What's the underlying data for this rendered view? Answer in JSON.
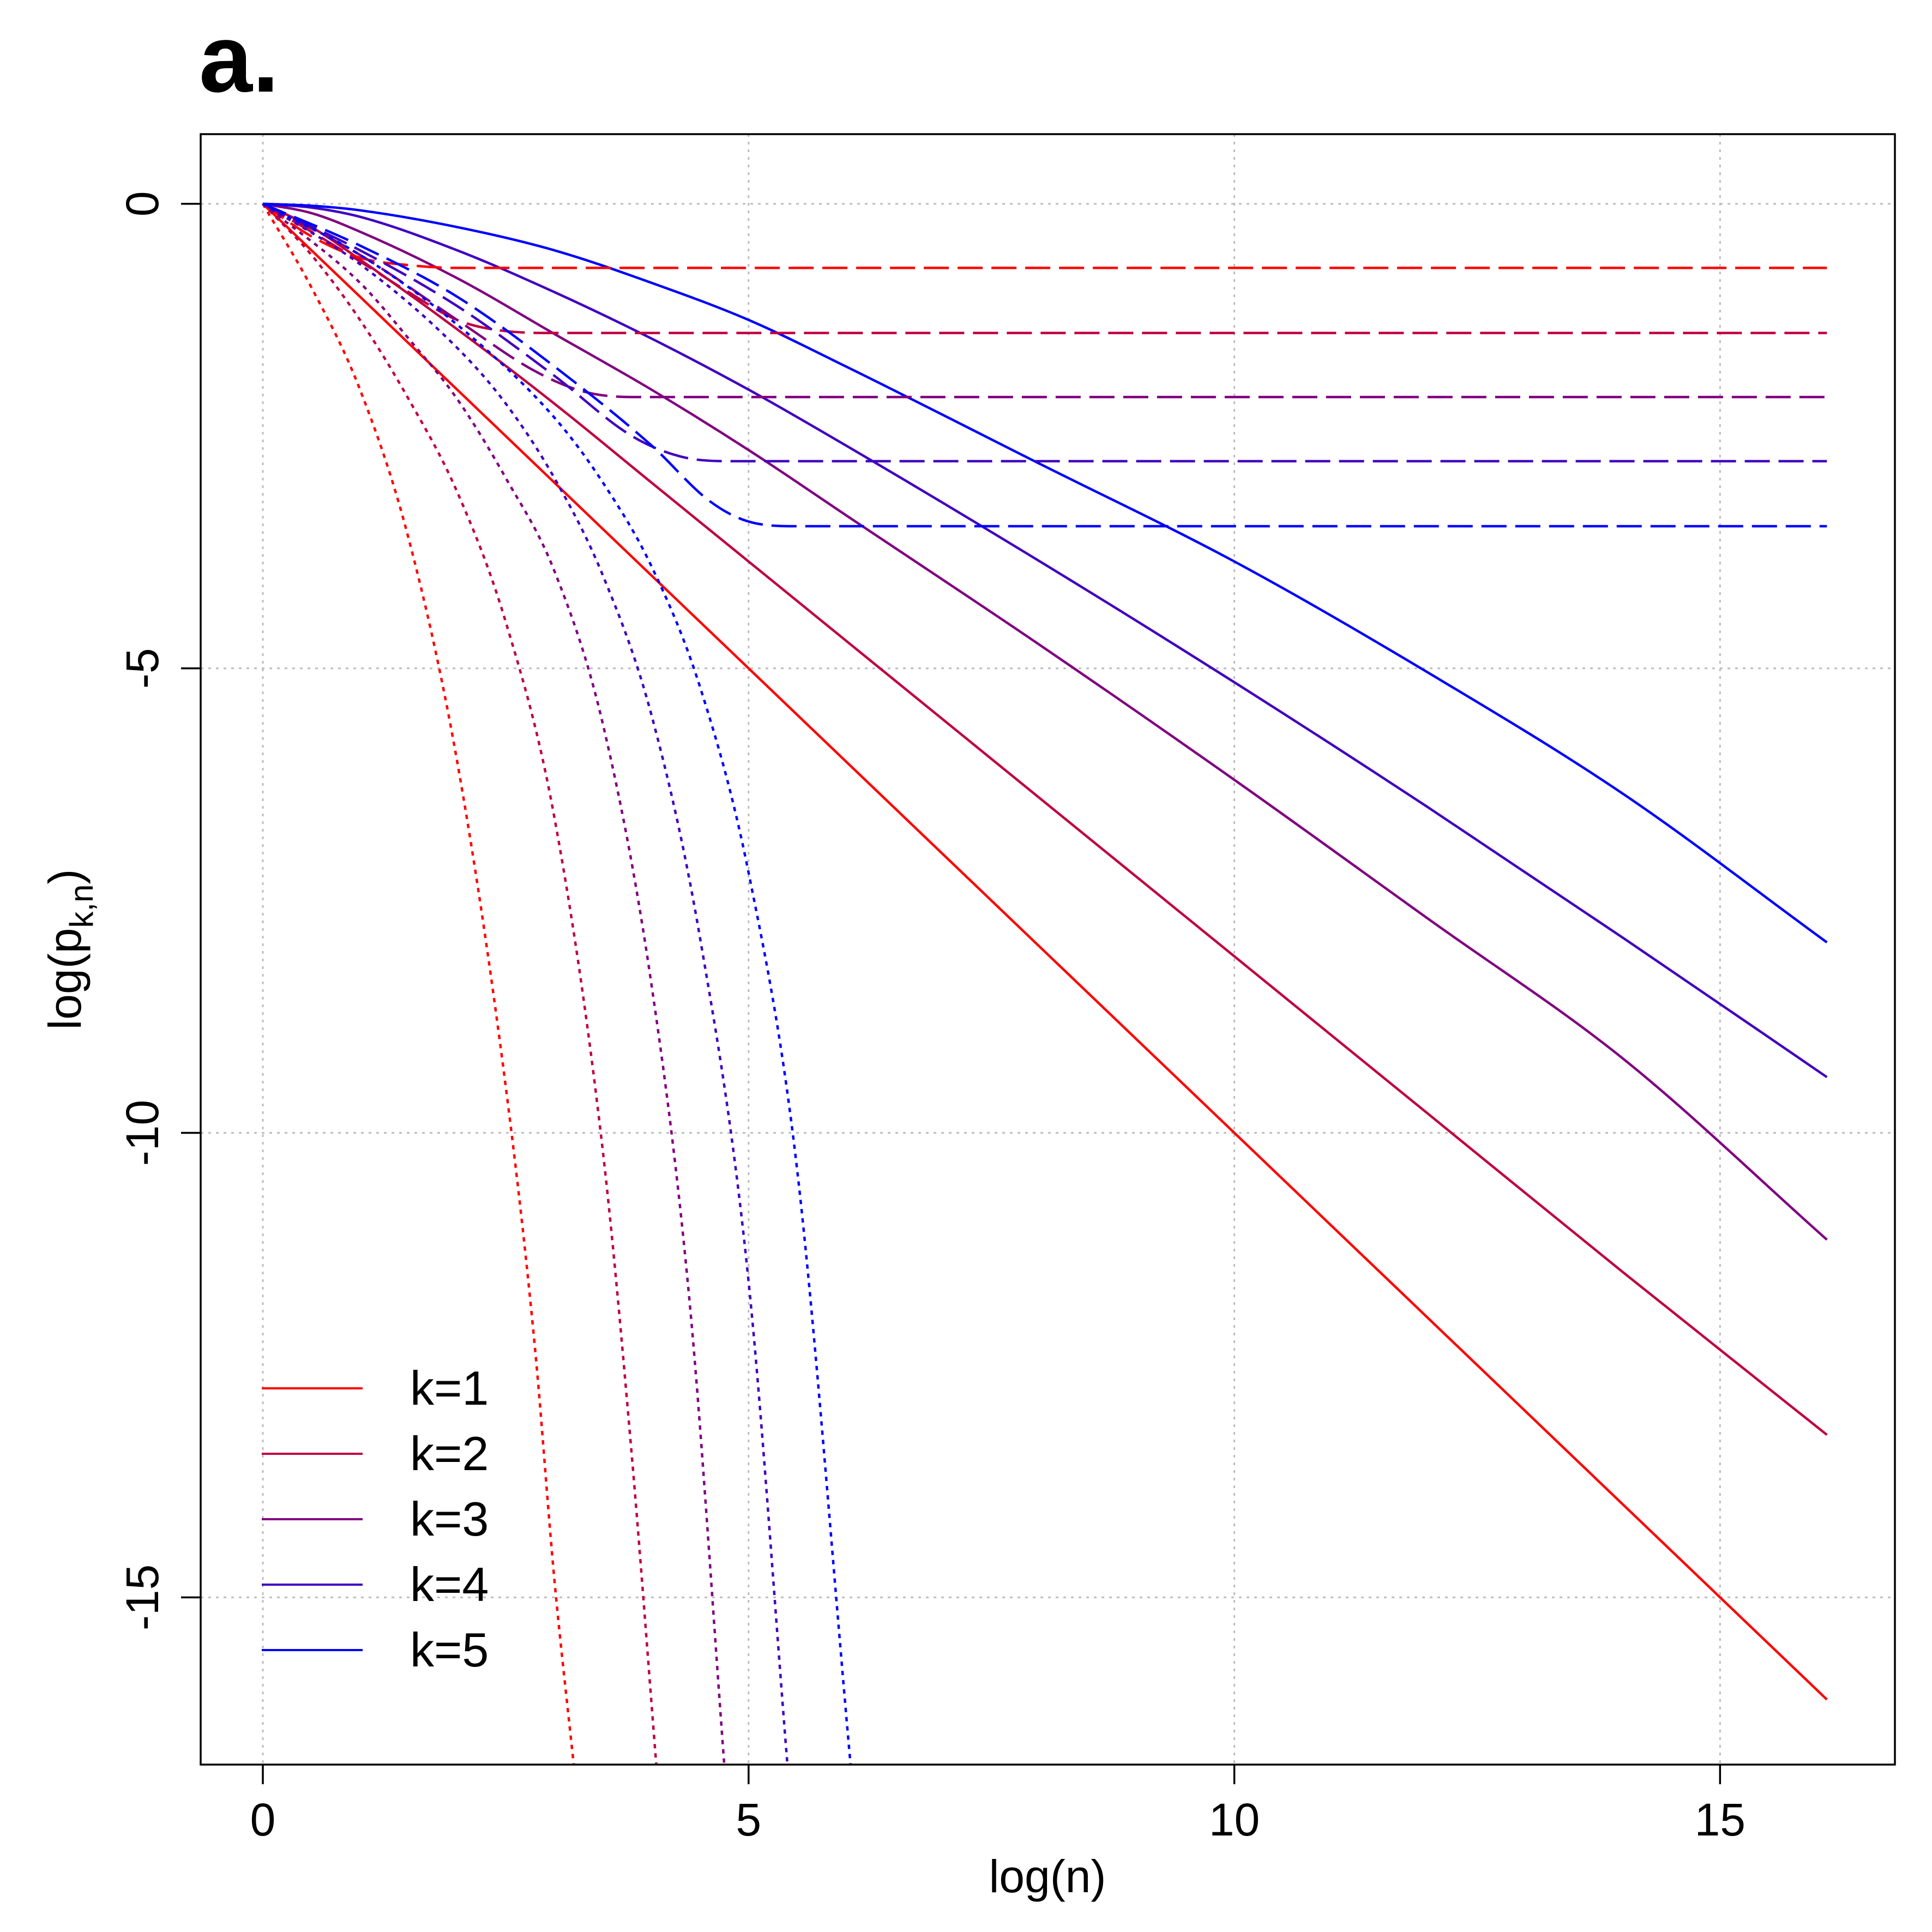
{
  "panel_label": "a.",
  "colors": {
    "k1": "#FF0000",
    "k2": "#BF0040",
    "k3": "#800080",
    "k4": "#4000BF",
    "k5": "#0000FF"
  },
  "chart_data": {
    "type": "line",
    "title": "",
    "xlabel": "log(n)",
    "ylabel_main": "log(p",
    "ylabel_sub": "k,n",
    "ylabel_close": ")",
    "xlim": [
      -0.64,
      16.8
    ],
    "ylim": [
      -16.8,
      0.75
    ],
    "xticks": [
      0,
      5,
      10,
      15
    ],
    "xtick_labels": [
      "0",
      "5",
      "10",
      "15"
    ],
    "yticks": [
      0,
      -5,
      -10,
      -15
    ],
    "ytick_labels": [
      "0",
      "-5",
      "-10",
      "-15"
    ],
    "grid": true,
    "legend_position": "bottom-left",
    "legend": [
      "k=1",
      "k=2",
      "k=3",
      "k=4",
      "k=5"
    ],
    "series": [
      {
        "name": "k=1",
        "style": "solid",
        "color_key": "k1",
        "x": [
          0,
          0.5,
          1,
          2,
          3,
          4,
          5,
          6,
          8,
          10,
          12,
          14,
          16.1
        ],
        "y": [
          0,
          -0.5,
          -1.0,
          -2.0,
          -3.0,
          -4.0,
          -5.0,
          -6.0,
          -8.0,
          -10.0,
          -12.0,
          -14.0,
          -16.1
        ]
      },
      {
        "name": "k=2",
        "style": "solid",
        "color_key": "k2",
        "x": [
          0,
          0.5,
          1,
          2,
          3,
          4,
          5,
          6,
          8,
          10,
          12,
          14,
          16.1
        ],
        "y": [
          0,
          -0.25,
          -0.6,
          -1.35,
          -2.15,
          -3.0,
          -3.85,
          -4.7,
          -6.4,
          -8.1,
          -9.8,
          -11.5,
          -13.25
        ]
      },
      {
        "name": "k=3",
        "style": "solid",
        "color_key": "k3",
        "x": [
          0,
          0.5,
          1,
          2,
          3,
          4,
          5,
          6,
          8,
          10,
          12,
          14,
          16.1
        ],
        "y": [
          0,
          -0.1,
          -0.3,
          -0.8,
          -1.4,
          -2.0,
          -2.65,
          -3.35,
          -4.75,
          -6.2,
          -7.7,
          -9.2,
          -11.15
        ]
      },
      {
        "name": "k=4",
        "style": "solid",
        "color_key": "k4",
        "x": [
          0,
          0.5,
          1,
          2,
          3,
          4,
          5,
          6,
          8,
          10,
          12,
          14,
          16.1
        ],
        "y": [
          0,
          -0.04,
          -0.14,
          -0.5,
          -0.95,
          -1.45,
          -2.0,
          -2.6,
          -3.85,
          -5.15,
          -6.5,
          -7.9,
          -9.4
        ]
      },
      {
        "name": "k=5",
        "style": "solid",
        "color_key": "k5",
        "x": [
          0,
          0.5,
          1,
          2,
          3,
          4,
          5,
          6,
          8,
          10,
          12,
          14,
          16.1
        ],
        "y": [
          0,
          -0.02,
          -0.07,
          -0.25,
          -0.5,
          -0.85,
          -1.25,
          -1.75,
          -2.8,
          -3.85,
          -5.05,
          -6.35,
          -7.95
        ]
      },
      {
        "name": "k=1",
        "style": "dashed",
        "color_key": "k1",
        "x": [
          0,
          0.5,
          1,
          1.5,
          2,
          2.5,
          16.1
        ],
        "y": [
          0,
          -0.35,
          -0.58,
          -0.66,
          -0.69,
          -0.69,
          -0.69
        ]
      },
      {
        "name": "k=2",
        "style": "dashed",
        "color_key": "k2",
        "x": [
          0,
          0.5,
          1,
          1.5,
          2,
          2.5,
          3,
          16.1
        ],
        "y": [
          0,
          -0.3,
          -0.62,
          -0.95,
          -1.25,
          -1.37,
          -1.39,
          -1.39
        ]
      },
      {
        "name": "k=3",
        "style": "dashed",
        "color_key": "k3",
        "x": [
          0,
          1,
          2,
          2.8,
          3.3,
          3.8,
          16.1
        ],
        "y": [
          0,
          -0.55,
          -1.25,
          -1.8,
          -2.02,
          -2.08,
          -2.08
        ]
      },
      {
        "name": "k=4",
        "style": "dashed",
        "color_key": "k4",
        "x": [
          0,
          1,
          2,
          3,
          3.8,
          4.3,
          4.8,
          16.1
        ],
        "y": [
          0,
          -0.5,
          -1.1,
          -1.85,
          -2.5,
          -2.72,
          -2.77,
          -2.77
        ]
      },
      {
        "name": "k=5",
        "style": "dashed",
        "color_key": "k5",
        "x": [
          0,
          1,
          2,
          3,
          4,
          4.6,
          5,
          5.5,
          16.1
        ],
        "y": [
          0,
          -0.45,
          -1.0,
          -1.75,
          -2.6,
          -3.2,
          -3.42,
          -3.47,
          -3.47
        ]
      },
      {
        "name": "k=1",
        "style": "dotted",
        "color_key": "k1",
        "x": [
          0,
          0.5,
          1,
          1.5,
          2,
          2.5,
          2.8,
          3.0,
          3.2
        ],
        "y": [
          0,
          -0.9,
          -2.0,
          -3.6,
          -6.0,
          -9.5,
          -12.3,
          -14.8,
          -16.8
        ]
      },
      {
        "name": "k=2",
        "style": "dotted",
        "color_key": "k2",
        "x": [
          0,
          0.5,
          1,
          1.5,
          2,
          2.5,
          3.0,
          3.5,
          3.8,
          4.05
        ],
        "y": [
          0,
          -0.55,
          -1.25,
          -2.1,
          -3.1,
          -4.5,
          -6.6,
          -10.2,
          -13.5,
          -16.8
        ]
      },
      {
        "name": "k=3",
        "style": "dotted",
        "color_key": "k3",
        "x": [
          0,
          1,
          1.5,
          2,
          2.5,
          3,
          3.5,
          4.0,
          4.4,
          4.75
        ],
        "y": [
          0,
          -0.85,
          -1.45,
          -2.1,
          -2.95,
          -3.95,
          -5.6,
          -8.4,
          -11.9,
          -16.8
        ]
      },
      {
        "name": "k=4",
        "style": "dotted",
        "color_key": "k4",
        "x": [
          0,
          1,
          2,
          2.5,
          3,
          3.5,
          4.0,
          4.5,
          5.0,
          5.4
        ],
        "y": [
          0,
          -0.65,
          -1.55,
          -2.15,
          -2.95,
          -4.0,
          -5.5,
          -7.9,
          -11.6,
          -16.8
        ]
      },
      {
        "name": "k=5",
        "style": "dotted",
        "color_key": "k5",
        "x": [
          0,
          1,
          2,
          3,
          3.5,
          4.0,
          4.5,
          5.0,
          5.5,
          6.05
        ],
        "y": [
          0,
          -0.55,
          -1.3,
          -2.3,
          -3.0,
          -3.9,
          -5.2,
          -7.2,
          -10.4,
          -16.8
        ]
      }
    ]
  }
}
